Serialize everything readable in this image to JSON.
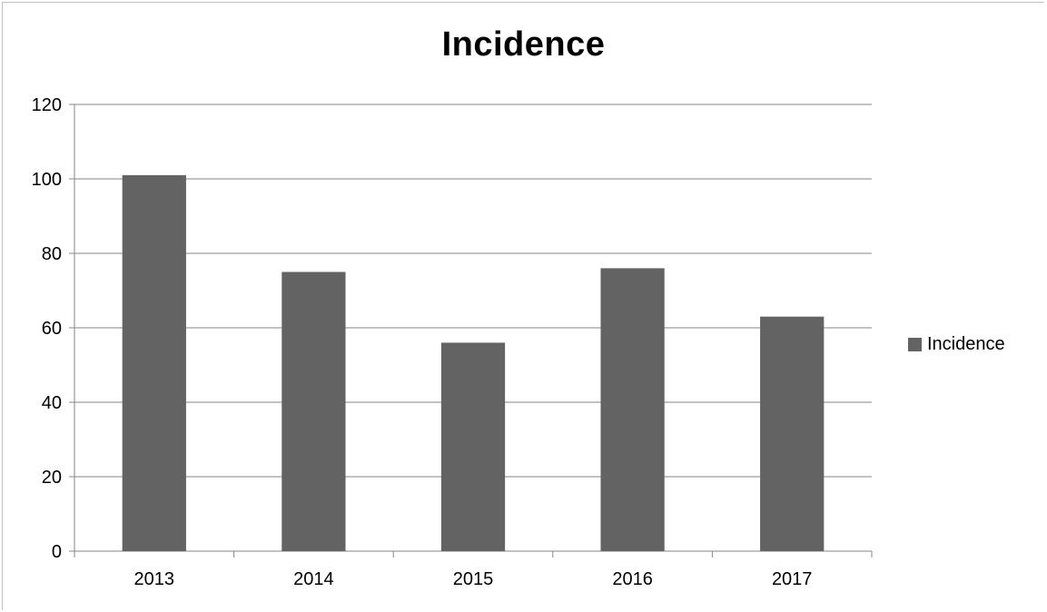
{
  "chart_data": {
    "type": "bar",
    "title": "Incidence",
    "xlabel": "",
    "ylabel": "",
    "categories": [
      "2013",
      "2014",
      "2015",
      "2016",
      "2017"
    ],
    "series": [
      {
        "name": "Incidence",
        "values": [
          101,
          75,
          56,
          76,
          63
        ],
        "color": "#636363"
      }
    ],
    "ylim": [
      0,
      120
    ],
    "yticks": [
      0,
      20,
      40,
      60,
      80,
      100,
      120
    ],
    "grid": true,
    "legend": "right"
  }
}
